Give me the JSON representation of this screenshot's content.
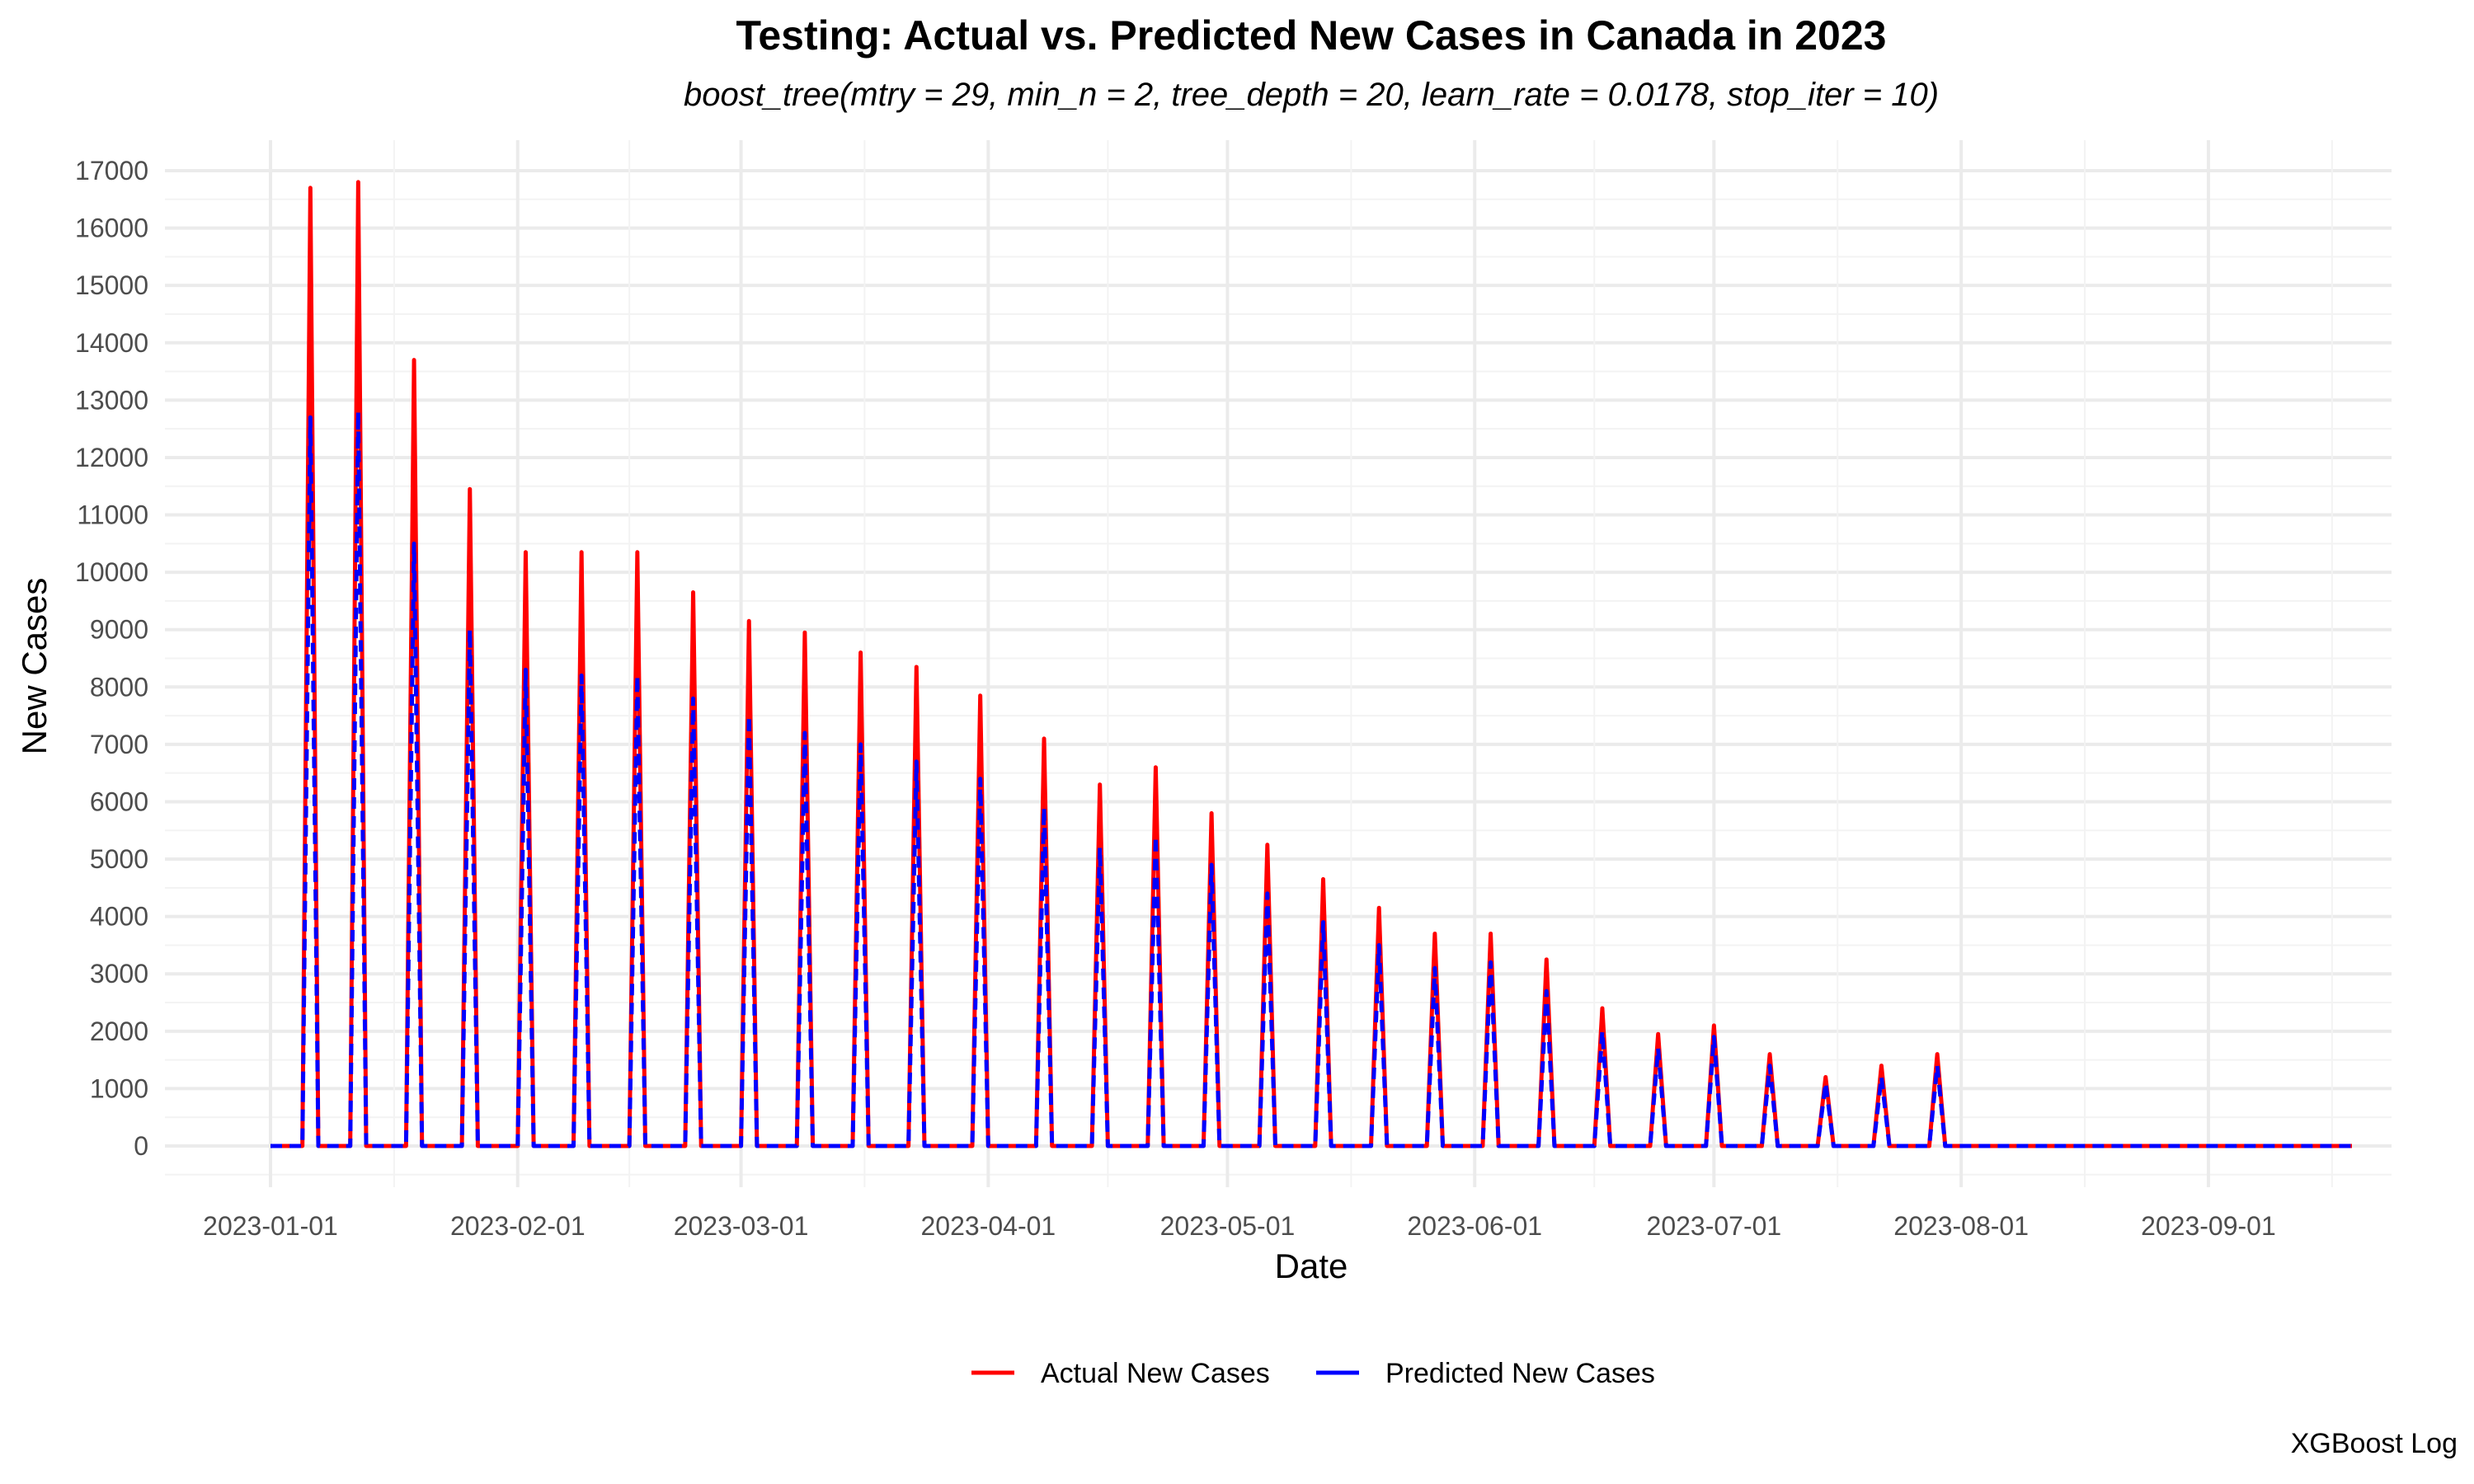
{
  "chart_data": {
    "type": "line",
    "title": "Testing: Actual vs. Predicted New Cases in Canada in 2023",
    "subtitle": "boost_tree(mtry = 29, min_n = 2, tree_depth = 20, learn_rate = 0.0178, stop_iter = 10)",
    "xlabel": "Date",
    "ylabel": "New Cases",
    "caption": "XGBoost Log",
    "x_range": [
      "2023-01-01",
      "2023-09-19"
    ],
    "ylim": [
      0,
      17000
    ],
    "y_ticks": [
      0,
      1000,
      2000,
      3000,
      4000,
      5000,
      6000,
      7000,
      8000,
      9000,
      10000,
      11000,
      12000,
      13000,
      14000,
      15000,
      16000,
      17000
    ],
    "x_ticks": [
      "2023-01-01",
      "2023-02-01",
      "2023-03-01",
      "2023-04-01",
      "2023-05-01",
      "2023-06-01",
      "2023-07-01",
      "2023-08-01",
      "2023-09-01"
    ],
    "grid": true,
    "legend_position": "bottom",
    "legend": [
      "Actual New Cases",
      "Predicted New Cases"
    ],
    "colors": {
      "actual": "#ff0000",
      "predicted": "#0000ff"
    },
    "series": [
      {
        "name": "Actual New Cases",
        "style": "solid",
        "spikes": [
          {
            "date": "2023-01-06",
            "value": 16700
          },
          {
            "date": "2023-01-12",
            "value": 16800
          },
          {
            "date": "2023-01-19",
            "value": 13700
          },
          {
            "date": "2023-01-26",
            "value": 11450
          },
          {
            "date": "2023-02-02",
            "value": 10350
          },
          {
            "date": "2023-02-09",
            "value": 10350
          },
          {
            "date": "2023-02-16",
            "value": 10350
          },
          {
            "date": "2023-02-23",
            "value": 9650
          },
          {
            "date": "2023-03-02",
            "value": 9150
          },
          {
            "date": "2023-03-09",
            "value": 8950
          },
          {
            "date": "2023-03-16",
            "value": 8600
          },
          {
            "date": "2023-03-23",
            "value": 8350
          },
          {
            "date": "2023-03-31",
            "value": 7850
          },
          {
            "date": "2023-04-08",
            "value": 7100
          },
          {
            "date": "2023-04-15",
            "value": 6300
          },
          {
            "date": "2023-04-22",
            "value": 6600
          },
          {
            "date": "2023-04-29",
            "value": 5800
          },
          {
            "date": "2023-05-06",
            "value": 5250
          },
          {
            "date": "2023-05-13",
            "value": 4650
          },
          {
            "date": "2023-05-20",
            "value": 4150
          },
          {
            "date": "2023-05-27",
            "value": 3700
          },
          {
            "date": "2023-06-03",
            "value": 3700
          },
          {
            "date": "2023-06-10",
            "value": 3250
          },
          {
            "date": "2023-06-17",
            "value": 2400
          },
          {
            "date": "2023-06-24",
            "value": 1950
          },
          {
            "date": "2023-07-01",
            "value": 2100
          },
          {
            "date": "2023-07-08",
            "value": 1600
          },
          {
            "date": "2023-07-15",
            "value": 1200
          },
          {
            "date": "2023-07-22",
            "value": 1400
          },
          {
            "date": "2023-07-29",
            "value": 1600
          }
        ]
      },
      {
        "name": "Predicted New Cases",
        "style": "dashed",
        "spikes": [
          {
            "date": "2023-01-06",
            "value": 12700
          },
          {
            "date": "2023-01-12",
            "value": 12800
          },
          {
            "date": "2023-01-19",
            "value": 10500
          },
          {
            "date": "2023-01-26",
            "value": 9000
          },
          {
            "date": "2023-02-02",
            "value": 8300
          },
          {
            "date": "2023-02-09",
            "value": 8200
          },
          {
            "date": "2023-02-16",
            "value": 8200
          },
          {
            "date": "2023-02-23",
            "value": 7800
          },
          {
            "date": "2023-03-02",
            "value": 7500
          },
          {
            "date": "2023-03-09",
            "value": 7200
          },
          {
            "date": "2023-03-16",
            "value": 7000
          },
          {
            "date": "2023-03-23",
            "value": 6700
          },
          {
            "date": "2023-03-31",
            "value": 6400
          },
          {
            "date": "2023-04-08",
            "value": 5900
          },
          {
            "date": "2023-04-15",
            "value": 5200
          },
          {
            "date": "2023-04-22",
            "value": 5400
          },
          {
            "date": "2023-04-29",
            "value": 4900
          },
          {
            "date": "2023-05-06",
            "value": 4400
          },
          {
            "date": "2023-05-13",
            "value": 3900
          },
          {
            "date": "2023-05-20",
            "value": 3500
          },
          {
            "date": "2023-05-27",
            "value": 3100
          },
          {
            "date": "2023-06-03",
            "value": 3200
          },
          {
            "date": "2023-06-10",
            "value": 2700
          },
          {
            "date": "2023-06-17",
            "value": 2000
          },
          {
            "date": "2023-06-24",
            "value": 1700
          },
          {
            "date": "2023-07-01",
            "value": 1900
          },
          {
            "date": "2023-07-08",
            "value": 1400
          },
          {
            "date": "2023-07-15",
            "value": 1100
          },
          {
            "date": "2023-07-22",
            "value": 1200
          },
          {
            "date": "2023-07-29",
            "value": 1400
          }
        ]
      }
    ]
  }
}
